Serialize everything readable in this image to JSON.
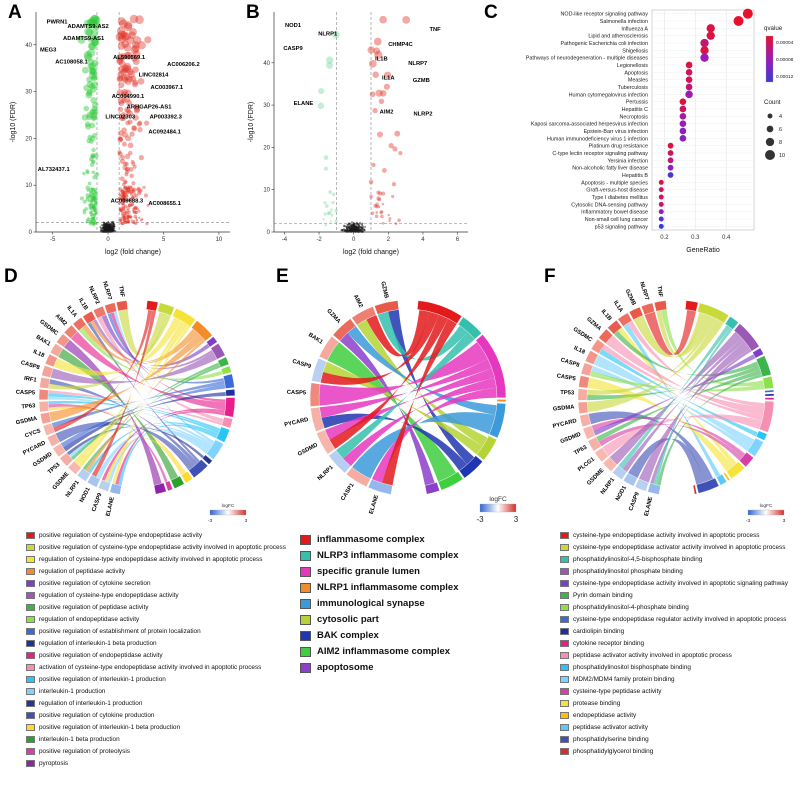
{
  "figure": {
    "panel_labels": [
      "A",
      "B",
      "C",
      "D",
      "E",
      "F"
    ]
  },
  "chart_data": [
    {
      "id": "A",
      "type": "scatter",
      "subtype": "volcano",
      "xlabel": "log2 (fold change)",
      "ylabel": "-log10 (FDR)",
      "xlim": [
        -6.5,
        11
      ],
      "ylim": [
        0,
        47
      ],
      "xticks": [
        -5,
        0,
        5,
        10
      ],
      "yticks": [
        0,
        10,
        20,
        30,
        40
      ],
      "vlines": [
        -1,
        1
      ],
      "hline": 2,
      "up_color": "#e03127",
      "down_color": "#2dc937",
      "ns_color": "#1a1a1a",
      "labels": [
        {
          "text": "PWRN1",
          "x": -4.6,
          "y": 44.5
        },
        {
          "text": "ADAMTS9-AS2",
          "x": -1.8,
          "y": 43.6
        },
        {
          "text": "ADAMTS9-AS1",
          "x": -2.2,
          "y": 41.0
        },
        {
          "text": "MEG3",
          "x": -5.4,
          "y": 38.6
        },
        {
          "text": "AC108058.1",
          "x": -3.3,
          "y": 36.0
        },
        {
          "text": "AL590569.1",
          "x": 1.9,
          "y": 37.0
        },
        {
          "text": "AC006206.2",
          "x": 6.8,
          "y": 35.5
        },
        {
          "text": "LINC02814",
          "x": 4.1,
          "y": 33.2
        },
        {
          "text": "AC003967.1",
          "x": 5.3,
          "y": 30.5
        },
        {
          "text": "AC004990.1",
          "x": 1.8,
          "y": 28.6
        },
        {
          "text": "ARHGAP26-AS1",
          "x": 3.7,
          "y": 26.4
        },
        {
          "text": "LINC02303",
          "x": 1.1,
          "y": 24.2
        },
        {
          "text": "AP003392.3",
          "x": 5.2,
          "y": 24.2
        },
        {
          "text": "AC092484.1",
          "x": 5.1,
          "y": 21.0
        },
        {
          "text": "AL732437.1",
          "x": -4.9,
          "y": 13.0
        },
        {
          "text": "AC009688.3",
          "x": 1.7,
          "y": 6.3
        },
        {
          "text": "AC008655.1",
          "x": 5.1,
          "y": 5.8
        }
      ]
    },
    {
      "id": "B",
      "type": "scatter",
      "subtype": "volcano",
      "xlabel": "log2 (fold change)",
      "ylabel": "-log10 (FDR)",
      "xlim": [
        -4.6,
        6.6
      ],
      "ylim": [
        0,
        52
      ],
      "xticks": [
        -4,
        -2,
        0,
        2,
        4,
        6
      ],
      "yticks": [
        0,
        10,
        20,
        30,
        40
      ],
      "vlines": [
        -1,
        1
      ],
      "hline": 2,
      "up_color": "#e03127",
      "down_color": "#7fdca0",
      "ns_color": "#1a1a1a",
      "labels": [
        {
          "text": "NOD1",
          "x": -3.5,
          "y": 48.5
        },
        {
          "text": "NLRP1",
          "x": -1.5,
          "y": 46.5
        },
        {
          "text": "CASP9",
          "x": -3.5,
          "y": 43.0
        },
        {
          "text": "TNF",
          "x": 4.7,
          "y": 47.5
        },
        {
          "text": "CHMP4C",
          "x": 2.7,
          "y": 44.0
        },
        {
          "text": "IL1B",
          "x": 1.6,
          "y": 40.5
        },
        {
          "text": "NLRP7",
          "x": 3.7,
          "y": 39.5
        },
        {
          "text": "IL1A",
          "x": 2.0,
          "y": 36.0
        },
        {
          "text": "GZMB",
          "x": 3.9,
          "y": 35.5
        },
        {
          "text": "ELANE",
          "x": -2.9,
          "y": 30.0
        },
        {
          "text": "AIM2",
          "x": 1.9,
          "y": 28.0
        },
        {
          "text": "NLRP2",
          "x": 4.0,
          "y": 27.5
        }
      ]
    },
    {
      "id": "C",
      "type": "scatter",
      "subtype": "dotplot",
      "xlabel": "GeneRatio",
      "xlim": [
        0.16,
        0.49
      ],
      "xticks": [
        0.2,
        0.3,
        0.4
      ],
      "legend_qvalue": {
        "title": "qvalue",
        "ticks": [
          "0.00004",
          "0.00008",
          "0.00012"
        ],
        "top_color": "#e8112d",
        "mid_color": "#9b1bb8",
        "bottom_color": "#3b3bd4"
      },
      "legend_count": {
        "title": "Count",
        "sizes": [
          4,
          6,
          8,
          10
        ]
      },
      "rows": [
        {
          "pathway": "NOD-like receptor signaling pathway",
          "ratio": 0.47,
          "count": 10,
          "qvalue": 1e-05
        },
        {
          "pathway": "Salmonella infection",
          "ratio": 0.44,
          "count": 10,
          "qvalue": 1e-05
        },
        {
          "pathway": "Influenza A",
          "ratio": 0.35,
          "count": 8,
          "qvalue": 2e-05
        },
        {
          "pathway": "Lipid and atherosclerosis",
          "ratio": 0.35,
          "count": 8,
          "qvalue": 2e-05
        },
        {
          "pathway": "Pathogenic Escherichia coli infection",
          "ratio": 0.33,
          "count": 8,
          "qvalue": 4e-05
        },
        {
          "pathway": "Shigellosis",
          "ratio": 0.33,
          "count": 8,
          "qvalue": 2e-05
        },
        {
          "pathway": "Pathways of neurodegeneration - multiple diseases",
          "ratio": 0.33,
          "count": 8,
          "qvalue": 7e-05
        },
        {
          "pathway": "Legionellosis",
          "ratio": 0.28,
          "count": 6,
          "qvalue": 2e-05
        },
        {
          "pathway": "Apoptosis",
          "ratio": 0.28,
          "count": 6,
          "qvalue": 3e-05
        },
        {
          "pathway": "Measles",
          "ratio": 0.28,
          "count": 6,
          "qvalue": 3e-05
        },
        {
          "pathway": "Tuberculosis",
          "ratio": 0.28,
          "count": 6,
          "qvalue": 4e-05
        },
        {
          "pathway": "Human cytomegalovirus infection",
          "ratio": 0.28,
          "count": 7,
          "qvalue": 7e-05
        },
        {
          "pathway": "Pertussis",
          "ratio": 0.26,
          "count": 6,
          "qvalue": 2e-05
        },
        {
          "pathway": "Hepatitis C",
          "ratio": 0.26,
          "count": 6,
          "qvalue": 3e-05
        },
        {
          "pathway": "Necroptosis",
          "ratio": 0.26,
          "count": 6,
          "qvalue": 6e-05
        },
        {
          "pathway": "Kaposi sarcoma-associated herpesvirus infection",
          "ratio": 0.26,
          "count": 6,
          "qvalue": 7e-05
        },
        {
          "pathway": "Epstein-Barr virus infection",
          "ratio": 0.26,
          "count": 6,
          "qvalue": 8e-05
        },
        {
          "pathway": "Human immunodeficiency virus 1 infection",
          "ratio": 0.26,
          "count": 6,
          "qvalue": 8e-05
        },
        {
          "pathway": "Platinum drug resistance",
          "ratio": 0.22,
          "count": 5,
          "qvalue": 2e-05
        },
        {
          "pathway": "C-type lectin receptor signaling pathway",
          "ratio": 0.22,
          "count": 5,
          "qvalue": 3e-05
        },
        {
          "pathway": "Yersinia infection",
          "ratio": 0.22,
          "count": 5,
          "qvalue": 4e-05
        },
        {
          "pathway": "Non-alcoholic fatty liver disease",
          "ratio": 0.22,
          "count": 5,
          "qvalue": 8e-05
        },
        {
          "pathway": "Hepatitis B",
          "ratio": 0.22,
          "count": 5,
          "qvalue": 0.00012
        },
        {
          "pathway": "Apoptosis - multiple species",
          "ratio": 0.19,
          "count": 4,
          "qvalue": 2e-05
        },
        {
          "pathway": "Graft-versus-host disease",
          "ratio": 0.19,
          "count": 4,
          "qvalue": 3e-05
        },
        {
          "pathway": "Type I diabetes mellitus",
          "ratio": 0.19,
          "count": 4,
          "qvalue": 3e-05
        },
        {
          "pathway": "Cytosolic DNA-sensing pathway",
          "ratio": 0.19,
          "count": 4,
          "qvalue": 4e-05
        },
        {
          "pathway": "Inflammatory bowel disease",
          "ratio": 0.19,
          "count": 4,
          "qvalue": 7e-05
        },
        {
          "pathway": "Non-small cell lung cancer",
          "ratio": 0.19,
          "count": 4,
          "qvalue": 0.00012
        },
        {
          "pathway": "p53 signaling pathway",
          "ratio": 0.19,
          "count": 4,
          "qvalue": 0.00013
        }
      ]
    },
    {
      "id": "D",
      "type": "chord",
      "legend_logfc": {
        "title": "logFC",
        "min": "-3",
        "max": "3"
      },
      "genes": [
        {
          "name": "TNF",
          "logfc": 3.2
        },
        {
          "name": "NLRP7",
          "logfc": 2.6
        },
        {
          "name": "NLRP2",
          "logfc": 2.3
        },
        {
          "name": "IL1B",
          "logfc": 2.9
        },
        {
          "name": "IL1A",
          "logfc": 2.5
        },
        {
          "name": "AIM2",
          "logfc": 2.1
        },
        {
          "name": "GSDMC",
          "logfc": 1.6
        },
        {
          "name": "BAK1",
          "logfc": 1.2
        },
        {
          "name": "IL18",
          "logfc": 1.6
        },
        {
          "name": "CASP8",
          "logfc": 1.3
        },
        {
          "name": "IRF1",
          "logfc": 1.2
        },
        {
          "name": "CASP5",
          "logfc": 1.9
        },
        {
          "name": "TP63",
          "logfc": 1.0
        },
        {
          "name": "GSDMA",
          "logfc": 1.4
        },
        {
          "name": "CYCS",
          "logfc": 0.9
        },
        {
          "name": "PYCARD",
          "logfc": 1.0
        },
        {
          "name": "GSDMD",
          "logfc": 0.9
        },
        {
          "name": "TP53",
          "logfc": 1.1
        },
        {
          "name": "GSDME",
          "logfc": 0.8
        },
        {
          "name": "NLRP1",
          "logfc": -1.2
        },
        {
          "name": "NOD1",
          "logfc": -1.6
        },
        {
          "name": "CASP9",
          "logfc": -1.1
        },
        {
          "name": "ELANE",
          "logfc": -2.2
        }
      ],
      "terms": [
        {
          "label": "positive regulation of cysteine-type endopeptidase activity",
          "color": "#e31a1c"
        },
        {
          "label": "positive regulation of cysteine-type endopeptidase activity involved in apoptotic process",
          "color": "#c8d93a"
        },
        {
          "label": "regulation of cysteine-type endopeptidase activity involved in apoptotic process",
          "color": "#f5e339"
        },
        {
          "label": "regulation of peptidase activity",
          "color": "#f28c28"
        },
        {
          "label": "positive regulation of cytokine secretion",
          "color": "#7d3fc9"
        },
        {
          "label": "regulation of cysteine-type endopeptidase activity",
          "color": "#9b59b6"
        },
        {
          "label": "positive regulation of peptidase activity",
          "color": "#3cb44b"
        },
        {
          "label": "regulation of endopeptidase activity",
          "color": "#8ce04a"
        },
        {
          "label": "positive regulation of establishment of protein localization",
          "color": "#3b6bd6"
        },
        {
          "label": "regulation of interleukin-1 beta production",
          "color": "#1f2f9e"
        },
        {
          "label": "positive regulation of endopeptidase activity",
          "color": "#e91e8c"
        },
        {
          "label": "activation of cysteine-type endopeptidase activity involved in apoptotic process",
          "color": "#f78fb3"
        },
        {
          "label": "positive regulation of interleukin-1 production",
          "color": "#29c5f6"
        },
        {
          "label": "interleukin-1 production",
          "color": "#7fd4ff"
        },
        {
          "label": "regulation of interleukin-1 production",
          "color": "#283593"
        },
        {
          "label": "positive regulation of cytokine production",
          "color": "#3f51b5"
        },
        {
          "label": "positive regulation of interleukin-1 beta production",
          "color": "#ffd92f"
        },
        {
          "label": "interleukin-1 beta production",
          "color": "#2ca02c"
        },
        {
          "label": "positive regulation of proteolysis",
          "color": "#d63fa6"
        },
        {
          "label": "pyroptosis",
          "color": "#8e24aa"
        }
      ]
    },
    {
      "id": "E",
      "type": "chord",
      "legend_logfc": {
        "title": "logFC",
        "min": "-3",
        "max": "3"
      },
      "genes": [
        {
          "name": "GZMB",
          "logfc": 3.0
        },
        {
          "name": "AIM2",
          "logfc": 2.1
        },
        {
          "name": "GZMA",
          "logfc": 2.6
        },
        {
          "name": "BAK1",
          "logfc": 1.2
        },
        {
          "name": "CASP9",
          "logfc": -1.1
        },
        {
          "name": "CASP5",
          "logfc": 1.9
        },
        {
          "name": "PYCARD",
          "logfc": 1.0
        },
        {
          "name": "GSDMD",
          "logfc": 0.9
        },
        {
          "name": "NLRP1",
          "logfc": -1.2
        },
        {
          "name": "CASP1",
          "logfc": 1.1
        },
        {
          "name": "ELANE",
          "logfc": -2.2
        }
      ],
      "terms": [
        {
          "label": "inflammasome complex",
          "color": "#e31a1c"
        },
        {
          "label": "NLRP3 inflammasome complex",
          "color": "#35c0ad"
        },
        {
          "label": "specific granule lumen",
          "color": "#e637bf"
        },
        {
          "label": "NLRP1 inflammasome complex",
          "color": "#f28c28"
        },
        {
          "label": "immunological synapse",
          "color": "#3b9ad9"
        },
        {
          "label": "cytosolic part",
          "color": "#b5d334"
        },
        {
          "label": "BAK complex",
          "color": "#2036b0"
        },
        {
          "label": "AIM2 inflammasome complex",
          "color": "#3ecf3e"
        },
        {
          "label": "apoptosome",
          "color": "#8c3fc9"
        }
      ]
    },
    {
      "id": "F",
      "type": "chord",
      "legend_logfc": {
        "title": "logFC",
        "min": "-3",
        "max": "3"
      },
      "genes": [
        {
          "name": "TNF",
          "logfc": 3.2
        },
        {
          "name": "NLRP7",
          "logfc": 2.6
        },
        {
          "name": "GZMB",
          "logfc": 3.0
        },
        {
          "name": "IL1A",
          "logfc": 2.5
        },
        {
          "name": "IL1B",
          "logfc": 2.9
        },
        {
          "name": "GZMA",
          "logfc": 2.6
        },
        {
          "name": "GSDMC",
          "logfc": 1.6
        },
        {
          "name": "IL18",
          "logfc": 1.6
        },
        {
          "name": "CASP8",
          "logfc": 1.3
        },
        {
          "name": "CASP5",
          "logfc": 1.9
        },
        {
          "name": "TP53",
          "logfc": 1.1
        },
        {
          "name": "GSDMA",
          "logfc": 1.4
        },
        {
          "name": "PYCARD",
          "logfc": 1.0
        },
        {
          "name": "GSDMD",
          "logfc": 0.9
        },
        {
          "name": "TP63",
          "logfc": 1.0
        },
        {
          "name": "PLCG1",
          "logfc": 0.8
        },
        {
          "name": "GSDME",
          "logfc": 0.8
        },
        {
          "name": "NLRP1",
          "logfc": -1.2
        },
        {
          "name": "NOD1",
          "logfc": -1.6
        },
        {
          "name": "CASP9",
          "logfc": -1.1
        },
        {
          "name": "ELANE",
          "logfc": -2.2
        }
      ],
      "terms": [
        {
          "label": "cysteine-type endopeptidase activity involved in apoptotic process",
          "color": "#e31a1c"
        },
        {
          "label": "cysteine-type endopeptidase activator activity involved in apoptotic process",
          "color": "#c8d93a"
        },
        {
          "label": "phosphatidylinositol-4,5-bisphosphate binding",
          "color": "#35c0ad"
        },
        {
          "label": "phosphatidylinositol phosphate binding",
          "color": "#9b59b6"
        },
        {
          "label": "cysteine-type endopeptidase activity involved in apoptotic signaling pathway",
          "color": "#7d3fc9"
        },
        {
          "label": "Pyrin domain binding",
          "color": "#3cb44b"
        },
        {
          "label": "phosphatidylinositol-4-phosphate binding",
          "color": "#8ce04a"
        },
        {
          "label": "cysteine-type endopeptidase regulator activity involved in apoptotic process",
          "color": "#3b6bd6"
        },
        {
          "label": "cardiolipin binding",
          "color": "#1f2f9e"
        },
        {
          "label": "cytokine receptor binding",
          "color": "#e91e8c"
        },
        {
          "label": "peptidase activator activity involved in apoptotic process",
          "color": "#f78fb3"
        },
        {
          "label": "phosphatidylinositol bisphosphate binding",
          "color": "#29c5f6"
        },
        {
          "label": "MDM2/MDM4 family protein binding",
          "color": "#7fd4ff"
        },
        {
          "label": "cysteine-type peptidase activity",
          "color": "#d63fa6"
        },
        {
          "label": "protease binding",
          "color": "#f5e339"
        },
        {
          "label": "endopeptidase activity",
          "color": "#ffc107"
        },
        {
          "label": "peptidase activator activity",
          "color": "#5bc8f5"
        },
        {
          "label": "phosphatidylserine binding",
          "color": "#3f51b5"
        },
        {
          "label": "phosphatidylglycerol binding",
          "color": "#d32f2f"
        }
      ]
    }
  ]
}
